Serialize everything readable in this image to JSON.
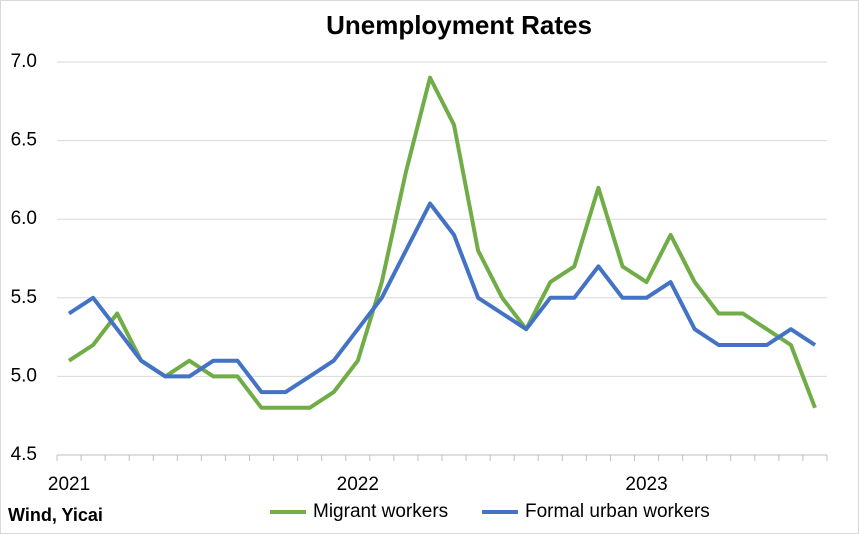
{
  "chart_data": {
    "type": "line",
    "title": "Unemployment Rates",
    "source": "Wind, Yicai",
    "categories": [
      "2021",
      null,
      null,
      null,
      null,
      null,
      null,
      null,
      null,
      null,
      null,
      null,
      "2022",
      null,
      null,
      null,
      null,
      null,
      null,
      null,
      null,
      null,
      null,
      null,
      "2023",
      null,
      null,
      null,
      null,
      null,
      null,
      null
    ],
    "series": [
      {
        "name": "Migrant workers",
        "color": "#70ad47",
        "values": [
          5.1,
          5.2,
          5.4,
          5.1,
          5.0,
          5.1,
          5.0,
          5.0,
          4.8,
          4.8,
          4.8,
          4.9,
          5.1,
          5.6,
          6.3,
          6.9,
          6.6,
          5.8,
          5.5,
          5.3,
          5.6,
          5.7,
          6.2,
          5.7,
          5.6,
          5.9,
          5.6,
          5.4,
          5.4,
          5.3,
          5.2,
          4.8
        ]
      },
      {
        "name": "Formal urban workers",
        "color": "#4472c4",
        "values": [
          5.4,
          5.5,
          5.3,
          5.1,
          5.0,
          5.0,
          5.1,
          5.1,
          4.9,
          4.9,
          5.0,
          5.1,
          5.3,
          5.5,
          5.8,
          6.1,
          5.9,
          5.5,
          5.4,
          5.3,
          5.5,
          5.5,
          5.7,
          5.5,
          5.5,
          5.6,
          5.3,
          5.2,
          5.2,
          5.2,
          5.3,
          5.2
        ]
      }
    ],
    "ylim": [
      4.5,
      7.0
    ],
    "yticks": [
      4.5,
      {
        "value": 5,
        "label": "5.0"
      },
      5.5,
      {
        "value": 6,
        "label": "6.0"
      },
      6.5,
      {
        "value": 7,
        "label": "7.0"
      }
    ],
    "grid": true,
    "legend": "bottom"
  }
}
